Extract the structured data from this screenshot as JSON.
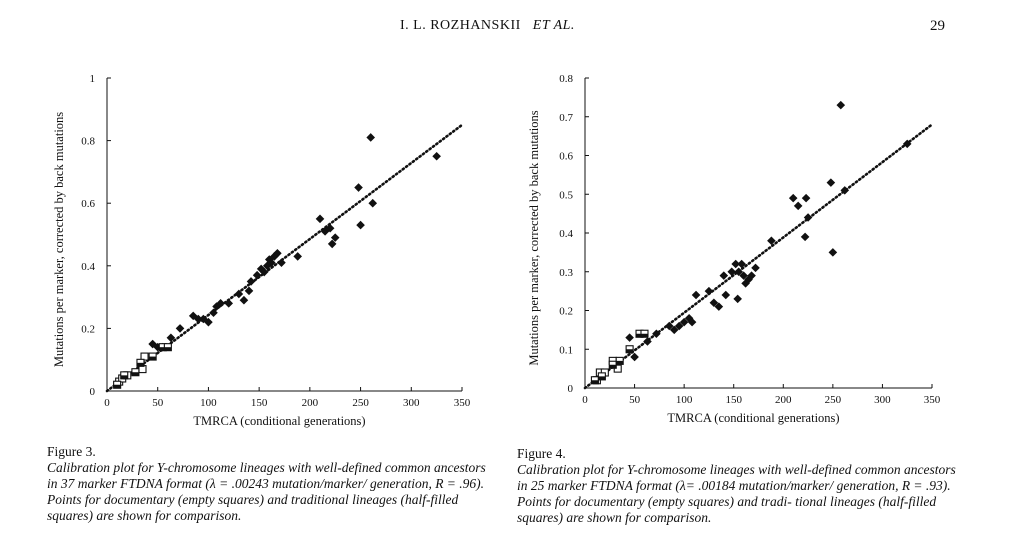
{
  "header": {
    "authors": "I. L. ROZHANSKII",
    "et_al": "ET   AL.",
    "page_number": "29"
  },
  "figures": [
    {
      "id": "fig3",
      "caption_label": "Figure 3.",
      "caption_text": "Calibration plot for Y-chromosome lineages with well-defined common ancestors in 37 marker FTDNA format (λ = .00243 mutation/marker/ generation, R = .96). Points for documentary (empty squares) and traditional lineages (half-filled squares) are shown for comparison."
    },
    {
      "id": "fig4",
      "caption_label": "Figure 4.",
      "caption_text": "Calibration plot for Y-chromosome lineages with well-defined common ancestors in 25 marker FTDNA format (λ= .00184 mutation/marker/ generation, R = .93). Points for documentary (empty squares) and tradi- tional lineages (half-filled squares) are shown for comparison."
    }
  ],
  "chart_data": [
    {
      "type": "scatter",
      "xlabel": "TMRCA (conditional generations)",
      "ylabel": "Mutations per marker, corrected by back mutations",
      "xlim": [
        0,
        350
      ],
      "ylim": [
        0,
        1
      ],
      "xticks": [
        "0",
        "50",
        "100",
        "150",
        "200",
        "250",
        "300",
        "350"
      ],
      "yticks": [
        "0",
        "0.2",
        "0.4",
        "0.6",
        "0.8",
        "1"
      ],
      "ytick_values": [
        0,
        0.2,
        0.4,
        0.6,
        0.8,
        1
      ],
      "grid": false,
      "trend_end": [
        350,
        0.85
      ],
      "series": [
        {
          "marker": "diamond",
          "points": [
            [
              45,
              0.15
            ],
            [
              50,
              0.14
            ],
            [
              55,
              0.14
            ],
            [
              63,
              0.17
            ],
            [
              72,
              0.2
            ],
            [
              85,
              0.24
            ],
            [
              90,
              0.23
            ],
            [
              95,
              0.23
            ],
            [
              100,
              0.22
            ],
            [
              105,
              0.25
            ],
            [
              108,
              0.27
            ],
            [
              112,
              0.28
            ],
            [
              120,
              0.28
            ],
            [
              130,
              0.31
            ],
            [
              135,
              0.29
            ],
            [
              140,
              0.32
            ],
            [
              142,
              0.35
            ],
            [
              148,
              0.37
            ],
            [
              152,
              0.39
            ],
            [
              155,
              0.38
            ],
            [
              158,
              0.4
            ],
            [
              160,
              0.42
            ],
            [
              162,
              0.41
            ],
            [
              165,
              0.43
            ],
            [
              168,
              0.44
            ],
            [
              172,
              0.41
            ],
            [
              188,
              0.43
            ],
            [
              210,
              0.55
            ],
            [
              215,
              0.51
            ],
            [
              220,
              0.52
            ],
            [
              222,
              0.47
            ],
            [
              225,
              0.49
            ],
            [
              248,
              0.65
            ],
            [
              250,
              0.53
            ],
            [
              260,
              0.81
            ],
            [
              262,
              0.6
            ],
            [
              325,
              0.75
            ]
          ]
        },
        {
          "marker": "empty-square",
          "points": [
            [
              12,
              0.03
            ],
            [
              15,
              0.04
            ],
            [
              20,
              0.05
            ],
            [
              35,
              0.07
            ],
            [
              37,
              0.11
            ]
          ]
        },
        {
          "marker": "half-square",
          "points": [
            [
              10,
              0.02
            ],
            [
              17,
              0.05
            ],
            [
              28,
              0.06
            ],
            [
              33,
              0.09
            ],
            [
              45,
              0.11
            ],
            [
              55,
              0.14
            ],
            [
              60,
              0.14
            ]
          ]
        }
      ]
    },
    {
      "type": "scatter",
      "xlabel": "TMRCA (conditional generations)",
      "ylabel": "Mutations per marker, corrected by back mutations",
      "xlim": [
        0,
        350
      ],
      "ylim": [
        0,
        0.8
      ],
      "xticks": [
        "0",
        "50",
        "100",
        "150",
        "200",
        "250",
        "300",
        "350"
      ],
      "yticks": [
        "0",
        "0.1",
        "0.2",
        "0.3",
        "0.4",
        "0.5",
        "0.6",
        "0.7",
        "0.8"
      ],
      "ytick_values": [
        0,
        0.1,
        0.2,
        0.3,
        0.4,
        0.5,
        0.6,
        0.7,
        0.8
      ],
      "grid": false,
      "trend_end": [
        350,
        0.68
      ],
      "series": [
        {
          "marker": "diamond",
          "points": [
            [
              45,
              0.13
            ],
            [
              50,
              0.08
            ],
            [
              63,
              0.12
            ],
            [
              72,
              0.14
            ],
            [
              85,
              0.16
            ],
            [
              90,
              0.15
            ],
            [
              95,
              0.16
            ],
            [
              100,
              0.17
            ],
            [
              105,
              0.18
            ],
            [
              108,
              0.17
            ],
            [
              112,
              0.24
            ],
            [
              125,
              0.25
            ],
            [
              130,
              0.22
            ],
            [
              135,
              0.21
            ],
            [
              140,
              0.29
            ],
            [
              142,
              0.24
            ],
            [
              148,
              0.3
            ],
            [
              152,
              0.32
            ],
            [
              154,
              0.23
            ],
            [
              155,
              0.3
            ],
            [
              158,
              0.32
            ],
            [
              160,
              0.29
            ],
            [
              162,
              0.27
            ],
            [
              165,
              0.28
            ],
            [
              168,
              0.29
            ],
            [
              172,
              0.31
            ],
            [
              188,
              0.38
            ],
            [
              210,
              0.49
            ],
            [
              215,
              0.47
            ],
            [
              222,
              0.39
            ],
            [
              223,
              0.49
            ],
            [
              225,
              0.44
            ],
            [
              248,
              0.53
            ],
            [
              250,
              0.35
            ],
            [
              258,
              0.73
            ],
            [
              262,
              0.51
            ],
            [
              325,
              0.63
            ]
          ]
        },
        {
          "marker": "empty-square",
          "points": [
            [
              12,
              0.02
            ],
            [
              15,
              0.04
            ],
            [
              20,
              0.04
            ],
            [
              28,
              0.07
            ],
            [
              33,
              0.05
            ]
          ]
        },
        {
          "marker": "half-square",
          "points": [
            [
              10,
              0.02
            ],
            [
              17,
              0.03
            ],
            [
              28,
              0.06
            ],
            [
              35,
              0.07
            ],
            [
              45,
              0.1
            ],
            [
              55,
              0.14
            ],
            [
              60,
              0.14
            ]
          ]
        }
      ]
    }
  ]
}
